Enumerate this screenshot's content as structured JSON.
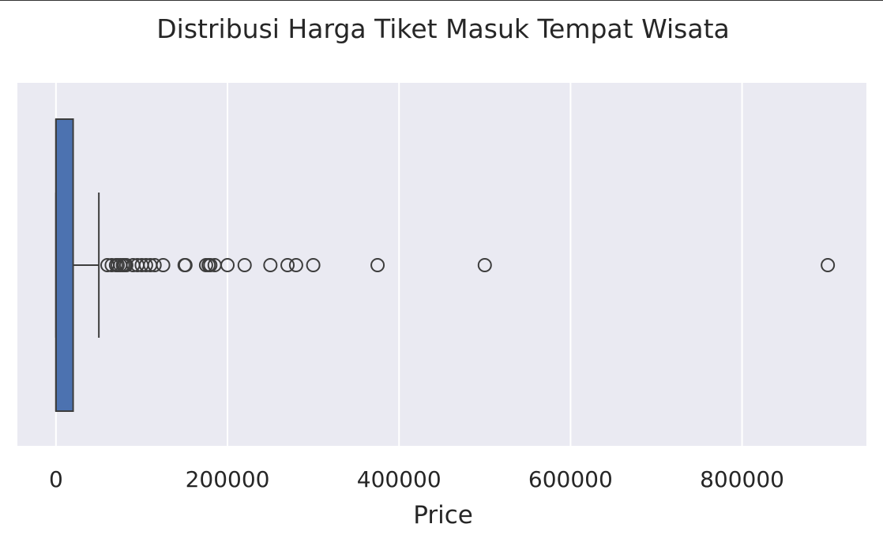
{
  "chart_data": {
    "type": "box",
    "orientation": "horizontal",
    "title": "Distribusi Harga Tiket Masuk Tempat Wisata",
    "xlabel": "Price",
    "ylabel": "",
    "xlim": [
      -45000,
      945000
    ],
    "xticks": [
      0,
      200000,
      400000,
      600000,
      800000
    ],
    "xtick_labels": [
      "0",
      "200000",
      "400000",
      "600000",
      "800000"
    ],
    "grid": true,
    "box": {
      "min": 0,
      "q1": 0,
      "median": 0,
      "q3": 20000,
      "whisker_low": 0,
      "whisker_high": 50000,
      "color": "#4c72b0"
    },
    "outliers": [
      60000,
      65000,
      70000,
      72000,
      75000,
      78000,
      80000,
      82000,
      90000,
      95000,
      100000,
      105000,
      110000,
      115000,
      125000,
      150000,
      151000,
      175000,
      178000,
      180000,
      185000,
      200000,
      220000,
      250000,
      270000,
      280000,
      300000,
      375000,
      500000,
      900000
    ],
    "colors": {
      "plot_background": "#eaeaf2",
      "grid": "#ffffff",
      "box_edge": "#3d3d3d"
    }
  }
}
